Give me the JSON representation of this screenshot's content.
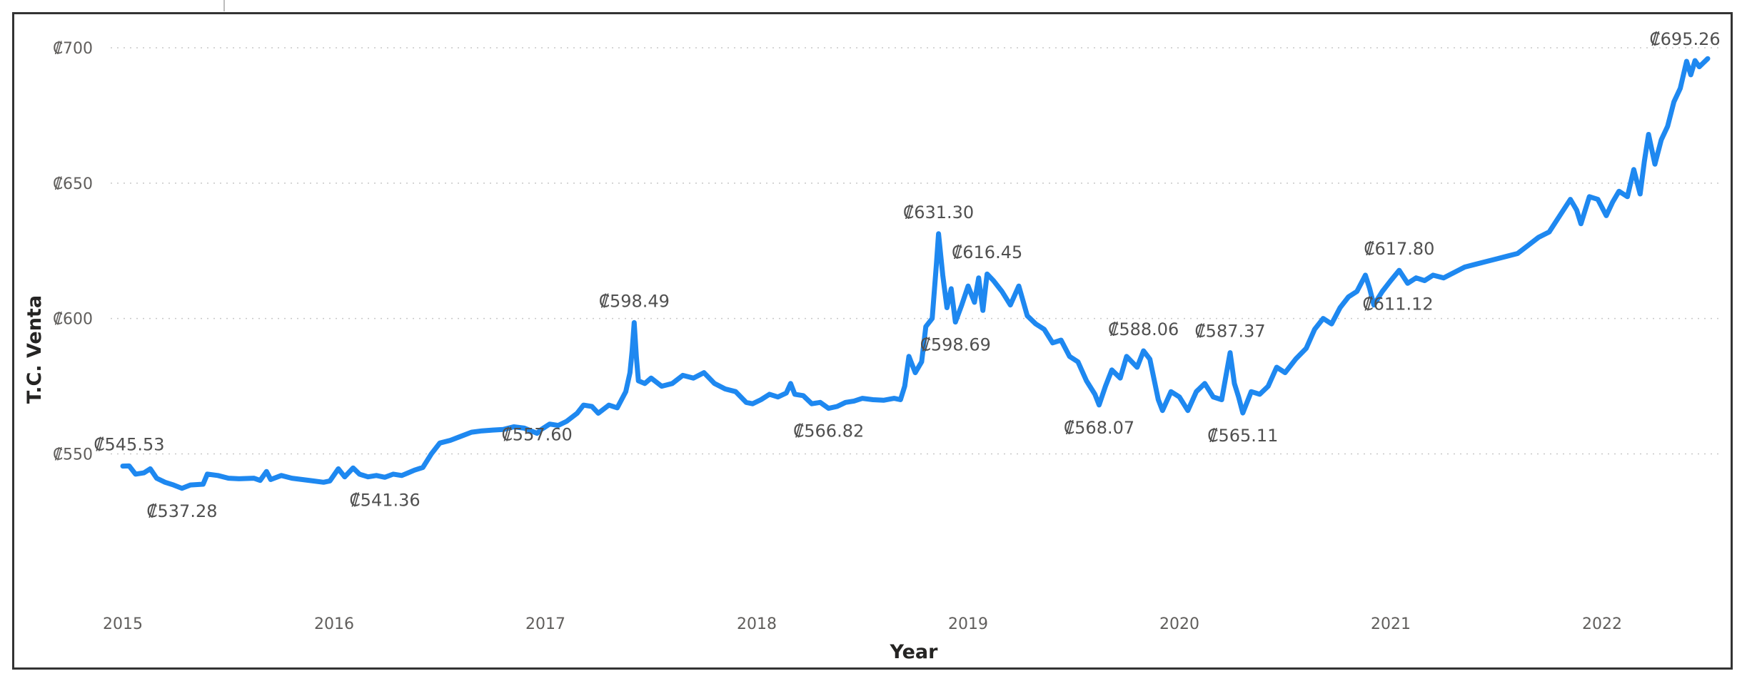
{
  "colors": {
    "line": "#1e88f0",
    "text": "#505050",
    "axis_title": "#252423"
  },
  "chart_data": {
    "type": "line",
    "title": "",
    "xlabel": "Year",
    "ylabel": "T.C. Venta",
    "x_ticks": [
      "2015",
      "2016",
      "2017",
      "2018",
      "2019",
      "2020",
      "2021",
      "2022"
    ],
    "y_ticks": [
      {
        "value": 550,
        "label": "₡550"
      },
      {
        "value": 600,
        "label": "₡600"
      },
      {
        "value": 650,
        "label": "₡650"
      },
      {
        "value": 700,
        "label": "₡700"
      }
    ],
    "xlim": [
      2015.0,
      2022.6
    ],
    "ylim": [
      528,
      705
    ],
    "gridlines": true,
    "series": [
      {
        "name": "",
        "points": [
          [
            2015.0,
            545.5
          ],
          [
            2015.03,
            545.53
          ],
          [
            2015.06,
            542.5
          ],
          [
            2015.1,
            543.0
          ],
          [
            2015.13,
            544.5
          ],
          [
            2015.16,
            541.0
          ],
          [
            2015.2,
            539.5
          ],
          [
            2015.24,
            538.5
          ],
          [
            2015.28,
            537.28
          ],
          [
            2015.32,
            538.5
          ],
          [
            2015.38,
            538.8
          ],
          [
            2015.4,
            542.5
          ],
          [
            2015.45,
            542.0
          ],
          [
            2015.5,
            541.0
          ],
          [
            2015.55,
            540.8
          ],
          [
            2015.62,
            541.0
          ],
          [
            2015.65,
            540.2
          ],
          [
            2015.68,
            543.5
          ],
          [
            2015.7,
            540.5
          ],
          [
            2015.75,
            542.0
          ],
          [
            2015.8,
            541.0
          ],
          [
            2015.85,
            540.5
          ],
          [
            2015.9,
            540.0
          ],
          [
            2015.95,
            539.5
          ],
          [
            2015.98,
            540.0
          ],
          [
            2016.02,
            544.5
          ],
          [
            2016.05,
            541.5
          ],
          [
            2016.09,
            544.8
          ],
          [
            2016.12,
            542.5
          ],
          [
            2016.16,
            541.5
          ],
          [
            2016.2,
            542.0
          ],
          [
            2016.24,
            541.36
          ],
          [
            2016.28,
            542.5
          ],
          [
            2016.32,
            542.0
          ],
          [
            2016.35,
            543.0
          ],
          [
            2016.38,
            544.0
          ],
          [
            2016.42,
            545.0
          ],
          [
            2016.46,
            550.0
          ],
          [
            2016.5,
            554.0
          ],
          [
            2016.55,
            555.0
          ],
          [
            2016.6,
            556.5
          ],
          [
            2016.65,
            558.0
          ],
          [
            2016.7,
            558.5
          ],
          [
            2016.75,
            558.8
          ],
          [
            2016.8,
            559.0
          ],
          [
            2016.85,
            560.0
          ],
          [
            2016.9,
            559.5
          ],
          [
            2016.96,
            557.6
          ],
          [
            2016.98,
            559.0
          ],
          [
            2017.02,
            561.0
          ],
          [
            2017.06,
            560.5
          ],
          [
            2017.1,
            562.0
          ],
          [
            2017.15,
            565.0
          ],
          [
            2017.18,
            568.0
          ],
          [
            2017.22,
            567.5
          ],
          [
            2017.25,
            565.0
          ],
          [
            2017.3,
            568.0
          ],
          [
            2017.34,
            567.0
          ],
          [
            2017.38,
            573.0
          ],
          [
            2017.4,
            580.0
          ],
          [
            2017.41,
            588.0
          ],
          [
            2017.42,
            598.49
          ],
          [
            2017.43,
            586.0
          ],
          [
            2017.44,
            577.0
          ],
          [
            2017.47,
            576.0
          ],
          [
            2017.5,
            578.0
          ],
          [
            2017.55,
            575.0
          ],
          [
            2017.6,
            576.0
          ],
          [
            2017.65,
            579.0
          ],
          [
            2017.7,
            578.0
          ],
          [
            2017.75,
            580.0
          ],
          [
            2017.8,
            576.0
          ],
          [
            2017.85,
            574.0
          ],
          [
            2017.9,
            573.0
          ],
          [
            2017.95,
            569.0
          ],
          [
            2017.98,
            568.5
          ],
          [
            2018.02,
            570.0
          ],
          [
            2018.06,
            572.0
          ],
          [
            2018.1,
            571.0
          ],
          [
            2018.14,
            572.5
          ],
          [
            2018.16,
            576.0
          ],
          [
            2018.18,
            572.0
          ],
          [
            2018.22,
            571.5
          ],
          [
            2018.26,
            568.5
          ],
          [
            2018.3,
            569.0
          ],
          [
            2018.34,
            566.82
          ],
          [
            2018.38,
            567.5
          ],
          [
            2018.42,
            569.0
          ],
          [
            2018.46,
            569.5
          ],
          [
            2018.5,
            570.5
          ],
          [
            2018.55,
            570.0
          ],
          [
            2018.6,
            569.8
          ],
          [
            2018.65,
            570.5
          ],
          [
            2018.68,
            570.0
          ],
          [
            2018.7,
            575.0
          ],
          [
            2018.72,
            586.0
          ],
          [
            2018.75,
            580.0
          ],
          [
            2018.78,
            584.0
          ],
          [
            2018.8,
            597.0
          ],
          [
            2018.83,
            600.0
          ],
          [
            2018.85,
            620.0
          ],
          [
            2018.86,
            631.3
          ],
          [
            2018.88,
            616.0
          ],
          [
            2018.9,
            604.0
          ],
          [
            2018.92,
            611.0
          ],
          [
            2018.94,
            598.69
          ],
          [
            2018.97,
            605.0
          ],
          [
            2019.0,
            612.0
          ],
          [
            2019.03,
            606.0
          ],
          [
            2019.05,
            615.0
          ],
          [
            2019.07,
            603.0
          ],
          [
            2019.09,
            616.45
          ],
          [
            2019.12,
            614.0
          ],
          [
            2019.16,
            610.0
          ],
          [
            2019.2,
            605.0
          ],
          [
            2019.24,
            612.0
          ],
          [
            2019.28,
            601.0
          ],
          [
            2019.32,
            598.0
          ],
          [
            2019.36,
            596.0
          ],
          [
            2019.4,
            591.0
          ],
          [
            2019.44,
            592.0
          ],
          [
            2019.48,
            586.0
          ],
          [
            2019.52,
            584.0
          ],
          [
            2019.56,
            577.0
          ],
          [
            2019.6,
            572.0
          ],
          [
            2019.62,
            568.07
          ],
          [
            2019.65,
            575.0
          ],
          [
            2019.68,
            581.0
          ],
          [
            2019.72,
            578.0
          ],
          [
            2019.75,
            586.0
          ],
          [
            2019.8,
            582.0
          ],
          [
            2019.83,
            588.06
          ],
          [
            2019.86,
            585.0
          ],
          [
            2019.9,
            570.0
          ],
          [
            2019.92,
            566.0
          ],
          [
            2019.96,
            573.0
          ],
          [
            2020.0,
            571.0
          ],
          [
            2020.04,
            566.0
          ],
          [
            2020.08,
            573.0
          ],
          [
            2020.12,
            576.0
          ],
          [
            2020.16,
            571.0
          ],
          [
            2020.2,
            570.0
          ],
          [
            2020.24,
            587.37
          ],
          [
            2020.26,
            576.0
          ],
          [
            2020.28,
            571.0
          ],
          [
            2020.3,
            565.11
          ],
          [
            2020.34,
            573.0
          ],
          [
            2020.38,
            572.0
          ],
          [
            2020.42,
            575.0
          ],
          [
            2020.46,
            582.0
          ],
          [
            2020.5,
            580.0
          ],
          [
            2020.55,
            585.0
          ],
          [
            2020.6,
            589.0
          ],
          [
            2020.64,
            596.0
          ],
          [
            2020.68,
            600.0
          ],
          [
            2020.72,
            598.0
          ],
          [
            2020.76,
            604.0
          ],
          [
            2020.8,
            608.0
          ],
          [
            2020.84,
            610.0
          ],
          [
            2020.88,
            616.0
          ],
          [
            2020.9,
            611.12
          ],
          [
            2020.92,
            605.0
          ],
          [
            2020.96,
            610.0
          ],
          [
            2021.0,
            614.0
          ],
          [
            2021.04,
            617.8
          ],
          [
            2021.08,
            613.0
          ],
          [
            2021.12,
            615.0
          ],
          [
            2021.16,
            614.0
          ],
          [
            2021.2,
            616.0
          ],
          [
            2021.25,
            615.0
          ],
          [
            2021.3,
            617.0
          ],
          [
            2021.35,
            619.0
          ],
          [
            2021.4,
            620.0
          ],
          [
            2021.45,
            621.0
          ],
          [
            2021.5,
            622.0
          ],
          [
            2021.55,
            623.0
          ],
          [
            2021.6,
            624.0
          ],
          [
            2021.65,
            627.0
          ],
          [
            2021.7,
            630.0
          ],
          [
            2021.75,
            632.0
          ],
          [
            2021.8,
            638.0
          ],
          [
            2021.85,
            644.0
          ],
          [
            2021.88,
            640.0
          ],
          [
            2021.9,
            635.0
          ],
          [
            2021.94,
            645.0
          ],
          [
            2021.98,
            644.0
          ],
          [
            2022.02,
            638.0
          ],
          [
            2022.05,
            643.0
          ],
          [
            2022.08,
            647.0
          ],
          [
            2022.12,
            645.0
          ],
          [
            2022.15,
            655.0
          ],
          [
            2022.18,
            646.0
          ],
          [
            2022.2,
            658.0
          ],
          [
            2022.22,
            668.0
          ],
          [
            2022.25,
            657.0
          ],
          [
            2022.28,
            666.0
          ],
          [
            2022.31,
            671.0
          ],
          [
            2022.34,
            680.0
          ],
          [
            2022.37,
            685.0
          ],
          [
            2022.4,
            695.0
          ],
          [
            2022.42,
            690.0
          ],
          [
            2022.44,
            695.26
          ],
          [
            2022.46,
            693.0
          ],
          [
            2022.5,
            696.0
          ]
        ]
      }
    ],
    "data_labels": [
      {
        "x": 2015.03,
        "y": 545.53,
        "text": "₡545.53",
        "pos": "above"
      },
      {
        "x": 2015.28,
        "y": 537.28,
        "text": "₡537.28",
        "pos": "below"
      },
      {
        "x": 2016.24,
        "y": 541.36,
        "text": "₡541.36",
        "pos": "below"
      },
      {
        "x": 2016.96,
        "y": 557.6,
        "text": "₡557.60",
        "pos": "center"
      },
      {
        "x": 2017.42,
        "y": 598.49,
        "text": "₡598.49",
        "pos": "above"
      },
      {
        "x": 2018.34,
        "y": 566.82,
        "text": "₡566.82",
        "pos": "below"
      },
      {
        "x": 2018.86,
        "y": 631.3,
        "text": "₡631.30",
        "pos": "above"
      },
      {
        "x": 2018.94,
        "y": 598.69,
        "text": "₡598.69",
        "pos": "below"
      },
      {
        "x": 2019.09,
        "y": 616.45,
        "text": "₡616.45",
        "pos": "above"
      },
      {
        "x": 2019.62,
        "y": 568.07,
        "text": "₡568.07",
        "pos": "below"
      },
      {
        "x": 2019.83,
        "y": 588.06,
        "text": "₡588.06",
        "pos": "above"
      },
      {
        "x": 2020.24,
        "y": 587.37,
        "text": "₡587.37",
        "pos": "above"
      },
      {
        "x": 2020.3,
        "y": 565.11,
        "text": "₡565.11",
        "pos": "below"
      },
      {
        "x": 2020.9,
        "y": 611.12,
        "text": "₡611.12",
        "pos": "below-right"
      },
      {
        "x": 2021.04,
        "y": 617.8,
        "text": "₡617.80",
        "pos": "above"
      },
      {
        "x": 2022.44,
        "y": 695.26,
        "text": "₡695.26",
        "pos": "above"
      }
    ]
  }
}
